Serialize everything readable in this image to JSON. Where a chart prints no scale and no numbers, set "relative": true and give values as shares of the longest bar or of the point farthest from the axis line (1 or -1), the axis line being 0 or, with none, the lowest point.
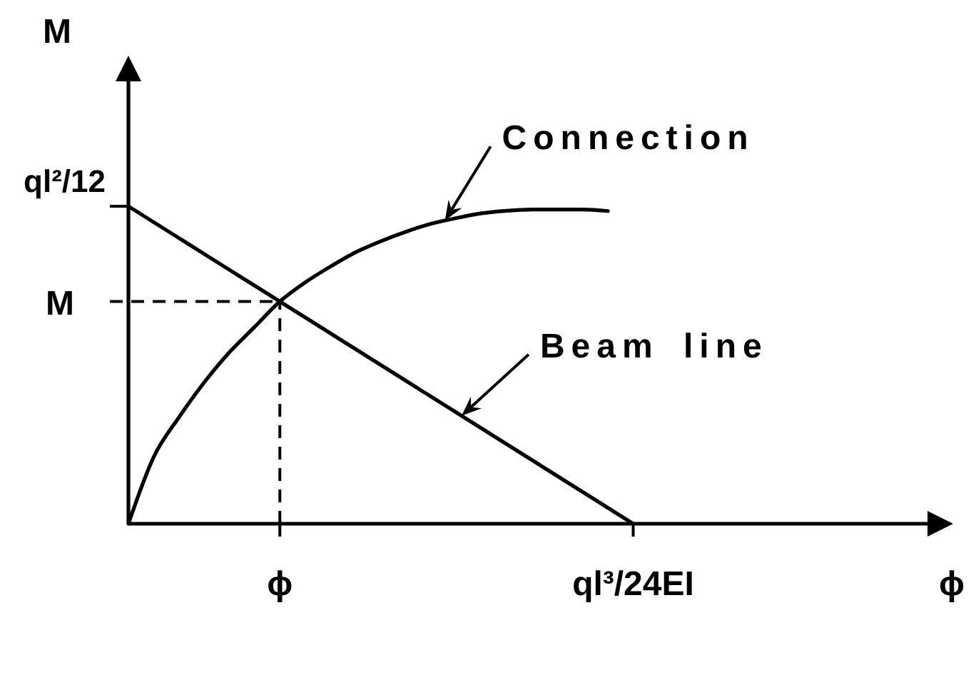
{
  "chart_data": {
    "type": "line",
    "relative": true,
    "xlabel": "ϕ",
    "ylabel": "M",
    "categories": [
      null,
      null,
      null,
      null,
      null,
      null,
      "ϕ",
      null,
      null,
      null,
      null,
      null,
      null,
      null,
      null,
      null,
      null,
      null,
      null,
      null,
      "ql³/24EI",
      null,
      null,
      null,
      null,
      null,
      null,
      null,
      null,
      null,
      null,
      null,
      null
    ],
    "series": [
      {
        "name": "Connection",
        "color": "#000000",
        "values": [
          0,
          0.21,
          0.335,
          0.445,
          0.54,
          0.62,
          0.7,
          0.76,
          0.81,
          0.855,
          0.89,
          0.92,
          0.945,
          0.963,
          0.978,
          0.986,
          0.99,
          0.99,
          0.99,
          0.985,
          null,
          null,
          null,
          null,
          null,
          null,
          null,
          null,
          null,
          null,
          null,
          null,
          null
        ]
      },
      {
        "name": "Beam line",
        "color": "#000000",
        "values": [
          1,
          0.95,
          0.9,
          0.85,
          0.8,
          0.75,
          0.7,
          0.65,
          0.6,
          0.55,
          0.5,
          0.45,
          0.4,
          0.35,
          0.3,
          0.25,
          0.2,
          0.15,
          0.1,
          0.05,
          0,
          null,
          null,
          null,
          null,
          null,
          null,
          null,
          null,
          null,
          null,
          null,
          null
        ]
      }
    ],
    "ref_lines": [
      {
        "axis": "y",
        "value": 0.7,
        "label": "M",
        "line_style": "dashed"
      },
      {
        "axis": "x",
        "value": "ϕ",
        "line_style": "dashed"
      }
    ],
    "annotations": [
      "ql²/12"
    ]
  }
}
